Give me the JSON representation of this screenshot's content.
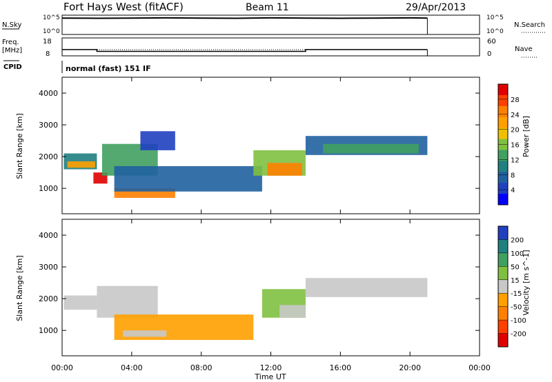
{
  "header": {
    "station": "Fort Hays West (fitACF)",
    "beam": "Beam 11",
    "date": "29/Apr/2013"
  },
  "top_panels": {
    "nsky_label": "N.Sky",
    "nsearch_label": "N.Search",
    "freq_label_1": "Freq.",
    "freq_label_2": "[MHz]",
    "nave_label": "Nave",
    "cpid_label": "CPID",
    "cpid_text": "normal (fast) 151 IF",
    "noise_left_ticks": [
      "10^5",
      "10^0"
    ],
    "noise_right_ticks": [
      "10^5",
      "10^0"
    ],
    "freq_ticks": [
      "18",
      "8"
    ],
    "nave_ticks": [
      "60",
      "0"
    ]
  },
  "chart_data": [
    {
      "type": "line",
      "name": "noise-strip",
      "x": [
        0,
        2,
        4,
        6,
        8,
        10,
        12,
        14,
        16,
        18,
        20,
        21
      ],
      "y": [
        0.85,
        0.84,
        0.85,
        0.86,
        0.85,
        0.84,
        0.86,
        0.85,
        0.84,
        0.85,
        0.86,
        0.85
      ],
      "xlim": [
        0,
        24
      ]
    },
    {
      "type": "line",
      "name": "frequency-strip",
      "x": [
        0,
        2,
        2,
        14,
        14,
        21
      ],
      "y": [
        11.5,
        11.5,
        10.5,
        10.5,
        11.5,
        11.5
      ],
      "xlim": [
        0,
        24
      ],
      "ylim": [
        8,
        18
      ]
    },
    {
      "type": "heatmap",
      "name": "power",
      "ylabel": "Slant Range [km]",
      "colorbar_label": "Power [dB]",
      "colorbar_ticks": [
        "28",
        "24",
        "20",
        "16",
        "12",
        "8",
        "4"
      ],
      "colorbar_colors": [
        "#e00000",
        "#ff4000",
        "#ff8000",
        "#ffa000",
        "#f0c000",
        "#80c040",
        "#40a060",
        "#208080",
        "#2060a0",
        "#2040c0",
        "#0000ff"
      ],
      "ylim": [
        200,
        4500
      ],
      "yticks": [
        "4000",
        "3000",
        "2000",
        "1000"
      ],
      "ytick_values": [
        4000,
        3000,
        2000,
        1000
      ],
      "xlim": [
        0,
        24
      ],
      "bands": [
        {
          "x0": 0.1,
          "x1": 2.0,
          "y0": 1600,
          "y1": 2100,
          "c": "#208080"
        },
        {
          "x0": 0.3,
          "x1": 1.9,
          "y0": 1650,
          "y1": 1850,
          "c": "#ffa000"
        },
        {
          "x0": 1.8,
          "x1": 2.6,
          "y0": 1150,
          "y1": 1500,
          "c": "#e00000"
        },
        {
          "x0": 2.3,
          "x1": 5.5,
          "y0": 1400,
          "y1": 2400,
          "c": "#40a060"
        },
        {
          "x0": 4.5,
          "x1": 6.5,
          "y0": 2200,
          "y1": 2800,
          "c": "#2040c0"
        },
        {
          "x0": 3.0,
          "x1": 6.5,
          "y0": 700,
          "y1": 1000,
          "c": "#ff8000"
        },
        {
          "x0": 3.0,
          "x1": 11.5,
          "y0": 900,
          "y1": 1700,
          "c": "#2060a0"
        },
        {
          "x0": 11.0,
          "x1": 14.0,
          "y0": 1400,
          "y1": 2200,
          "c": "#80c040"
        },
        {
          "x0": 11.8,
          "x1": 13.8,
          "y0": 1400,
          "y1": 1800,
          "c": "#ff8000"
        },
        {
          "x0": 14.0,
          "x1": 21.0,
          "y0": 2050,
          "y1": 2650,
          "c": "#2060a0"
        },
        {
          "x0": 15.0,
          "x1": 20.5,
          "y0": 2100,
          "y1": 2400,
          "c": "#40a060"
        }
      ]
    },
    {
      "type": "heatmap",
      "name": "velocity",
      "ylabel": "Slant Range [km]",
      "colorbar_label": "Velocity [m s^-1]",
      "colorbar_ticks": [
        "200",
        "100",
        "50",
        "15",
        "-15",
        "-50",
        "-100",
        "-200"
      ],
      "colorbar_colors": [
        "#2040c0",
        "#208080",
        "#40a060",
        "#80c040",
        "#c8c8c8",
        "#ffa000",
        "#ff8000",
        "#ff4000",
        "#e00000"
      ],
      "ylim": [
        200,
        4500
      ],
      "yticks": [
        "4000",
        "3000",
        "2000",
        "1000"
      ],
      "ytick_values": [
        4000,
        3000,
        2000,
        1000
      ],
      "xlim": [
        0,
        24
      ],
      "bands": [
        {
          "x0": 0.1,
          "x1": 2.0,
          "y0": 1650,
          "y1": 2100,
          "c": "#c8c8c8"
        },
        {
          "x0": 2.0,
          "x1": 5.5,
          "y0": 1400,
          "y1": 2400,
          "c": "#c8c8c8"
        },
        {
          "x0": 3.0,
          "x1": 11.0,
          "y0": 700,
          "y1": 1500,
          "c": "#ffa000"
        },
        {
          "x0": 3.5,
          "x1": 6.0,
          "y0": 800,
          "y1": 1000,
          "c": "#c8c8c8"
        },
        {
          "x0": 11.5,
          "x1": 14.0,
          "y0": 1400,
          "y1": 2300,
          "c": "#80c040"
        },
        {
          "x0": 12.5,
          "x1": 14.0,
          "y0": 1400,
          "y1": 1800,
          "c": "#c8c8c8"
        },
        {
          "x0": 14.0,
          "x1": 21.0,
          "y0": 2050,
          "y1": 2650,
          "c": "#c8c8c8"
        }
      ]
    }
  ],
  "x_axis": {
    "ticks": [
      "00:00",
      "04:00",
      "08:00",
      "12:00",
      "16:00",
      "20:00",
      "00:00"
    ],
    "tick_values": [
      0,
      4,
      8,
      12,
      16,
      20,
      24
    ],
    "label": "Time UT"
  }
}
